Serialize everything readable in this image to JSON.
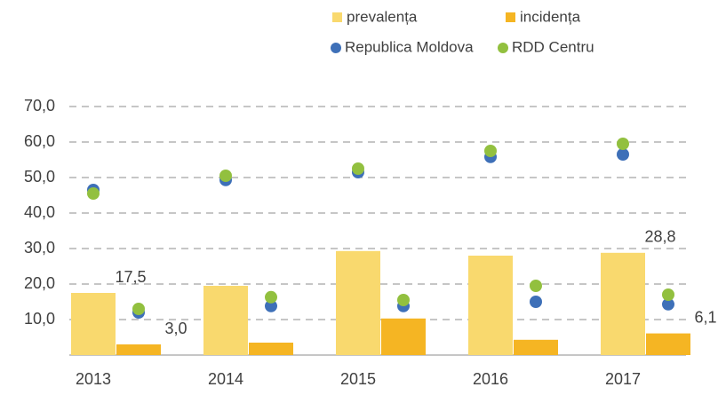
{
  "chart_data": {
    "type": "bar_scatter",
    "categories": [
      "2013",
      "2014",
      "2015",
      "2016",
      "2017"
    ],
    "series": [
      {
        "name": "prevalența",
        "color": "#f9d96e",
        "type": "bar",
        "values": [
          17.5,
          19.5,
          29.3,
          28.0,
          28.8
        ],
        "value_labels": [
          "17,5",
          null,
          null,
          null,
          "28,8"
        ]
      },
      {
        "name": "incidența",
        "color": "#f5b523",
        "type": "bar",
        "values": [
          3.0,
          3.5,
          10.3,
          4.3,
          6.1
        ],
        "value_labels": [
          "3,0",
          null,
          null,
          null,
          "6,1"
        ]
      },
      {
        "name": "Republica Moldova",
        "color": "#3e70b8",
        "type": "scatter",
        "prevalence_values": [
          46.5,
          49.3,
          51.5,
          55.8,
          56.5
        ],
        "incidence_values": [
          12.0,
          13.8,
          13.8,
          15.0,
          14.3
        ]
      },
      {
        "name": "RDD Centru",
        "color": "#92c03f",
        "type": "scatter",
        "prevalence_values": [
          45.5,
          50.5,
          52.5,
          57.5,
          59.5
        ],
        "incidence_values": [
          13.0,
          16.3,
          15.5,
          19.5,
          17.0
        ]
      }
    ],
    "ylim": [
      0,
      70
    ],
    "yticks": [
      {
        "value": 10,
        "label": "10,0"
      },
      {
        "value": 20,
        "label": "20,0"
      },
      {
        "value": 30,
        "label": "30,0"
      },
      {
        "value": 40,
        "label": "40,0"
      },
      {
        "value": 50,
        "label": "50,0"
      },
      {
        "value": 60,
        "label": "60,0"
      },
      {
        "value": 70,
        "label": "70,0"
      }
    ],
    "grid": true
  }
}
